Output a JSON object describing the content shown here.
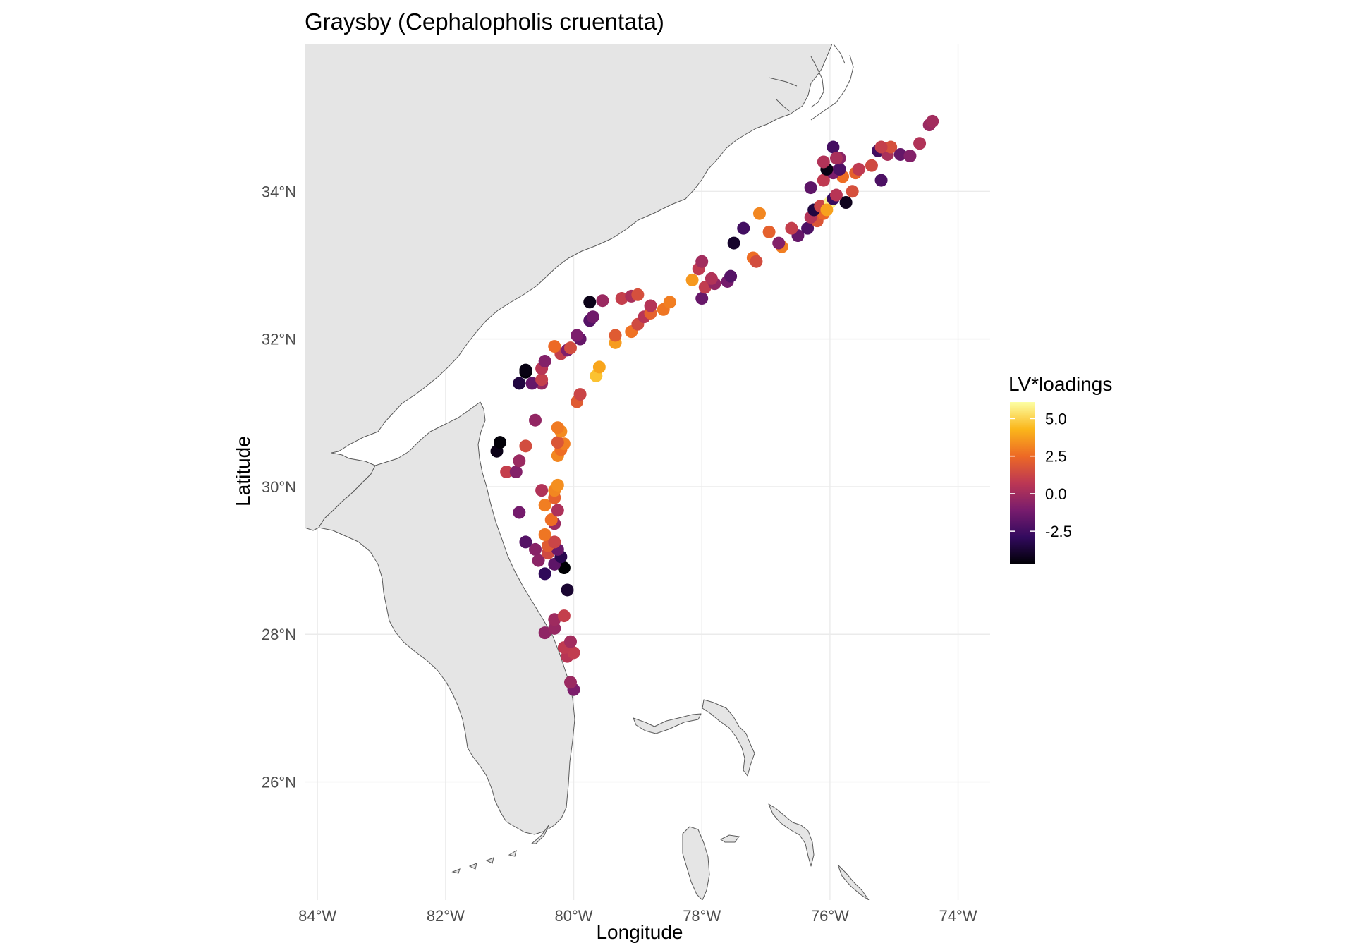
{
  "chart_data": {
    "type": "scatter",
    "title": "Graysby (Cephalopholis cruentata)",
    "xlabel": "Longitude",
    "ylabel": "Latitude",
    "x_ticks": [
      {
        "value": -84,
        "label": "84°W"
      },
      {
        "value": -82,
        "label": "82°W"
      },
      {
        "value": -80,
        "label": "80°W"
      },
      {
        "value": -78,
        "label": "78°W"
      },
      {
        "value": -76,
        "label": "76°W"
      },
      {
        "value": -74,
        "label": "74°W"
      }
    ],
    "y_ticks": [
      {
        "value": 26,
        "label": "26°N"
      },
      {
        "value": 28,
        "label": "28°N"
      },
      {
        "value": 30,
        "label": "30°N"
      },
      {
        "value": 32,
        "label": "32°N"
      },
      {
        "value": 34,
        "label": "34°N"
      }
    ],
    "xlim": [
      -84.2,
      -73.5
    ],
    "ylim": [
      24.4,
      36.0
    ],
    "grid": true,
    "basemap": "land polygons, light grey fill",
    "legend": {
      "title": "LV*loadings",
      "position": "right",
      "range": [
        -4.7,
        6.1
      ],
      "ticks": [
        {
          "value": 5.0,
          "label": "5.0"
        },
        {
          "value": 2.5,
          "label": "2.5"
        },
        {
          "value": 0.0,
          "label": "0.0"
        },
        {
          "value": -2.5,
          "label": "-2.5"
        }
      ],
      "palette": "inferno",
      "colors": [
        "#000004",
        "#320a5e",
        "#781c6d",
        "#bc3754",
        "#ed6925",
        "#fbb61a",
        "#fcffa4"
      ]
    },
    "colors": {
      "land": "#e5e5e5",
      "coastline": "#595959",
      "grid": "#ebebeb"
    },
    "points": [
      {
        "lon": -80.0,
        "lat": 27.25,
        "v": -1.0
      },
      {
        "lon": -80.05,
        "lat": 27.35,
        "v": -0.2
      },
      {
        "lon": -80.1,
        "lat": 27.7,
        "v": 0.6
      },
      {
        "lon": -80.0,
        "lat": 27.75,
        "v": 0.9
      },
      {
        "lon": -80.15,
        "lat": 27.82,
        "v": 0.8
      },
      {
        "lon": -80.05,
        "lat": 27.9,
        "v": 0.0
      },
      {
        "lon": -80.45,
        "lat": 28.02,
        "v": -0.5
      },
      {
        "lon": -80.3,
        "lat": 28.08,
        "v": -0.3
      },
      {
        "lon": -80.3,
        "lat": 28.2,
        "v": -0.1
      },
      {
        "lon": -80.15,
        "lat": 28.25,
        "v": 1.0
      },
      {
        "lon": -80.1,
        "lat": 28.6,
        "v": -3.8
      },
      {
        "lon": -80.45,
        "lat": 28.82,
        "v": -3.0
      },
      {
        "lon": -80.15,
        "lat": 28.9,
        "v": -4.7
      },
      {
        "lon": -80.3,
        "lat": 28.95,
        "v": -1.8
      },
      {
        "lon": -80.55,
        "lat": 29.0,
        "v": -0.6
      },
      {
        "lon": -80.2,
        "lat": 29.05,
        "v": -3.2
      },
      {
        "lon": -80.4,
        "lat": 29.1,
        "v": 1.4
      },
      {
        "lon": -80.25,
        "lat": 29.15,
        "v": -1.5
      },
      {
        "lon": -80.6,
        "lat": 29.15,
        "v": -0.7
      },
      {
        "lon": -80.4,
        "lat": 29.2,
        "v": 2.0
      },
      {
        "lon": -80.3,
        "lat": 29.25,
        "v": 1.2
      },
      {
        "lon": -80.75,
        "lat": 29.25,
        "v": -2.0
      },
      {
        "lon": -80.45,
        "lat": 29.35,
        "v": 2.8
      },
      {
        "lon": -80.3,
        "lat": 29.5,
        "v": -0.2
      },
      {
        "lon": -80.35,
        "lat": 29.55,
        "v": 2.6
      },
      {
        "lon": -80.85,
        "lat": 29.65,
        "v": -1.2
      },
      {
        "lon": -80.25,
        "lat": 29.68,
        "v": 0.3
      },
      {
        "lon": -80.45,
        "lat": 29.75,
        "v": 3.0
      },
      {
        "lon": -80.3,
        "lat": 29.85,
        "v": 2.2
      },
      {
        "lon": -80.3,
        "lat": 29.95,
        "v": 3.2
      },
      {
        "lon": -80.5,
        "lat": 29.95,
        "v": 0.4
      },
      {
        "lon": -80.25,
        "lat": 30.02,
        "v": 3.4
      },
      {
        "lon": -81.05,
        "lat": 30.2,
        "v": 1.0
      },
      {
        "lon": -80.9,
        "lat": 30.2,
        "v": -0.8
      },
      {
        "lon": -80.85,
        "lat": 30.35,
        "v": -0.2
      },
      {
        "lon": -80.25,
        "lat": 30.42,
        "v": 3.2
      },
      {
        "lon": -80.2,
        "lat": 30.5,
        "v": 2.6
      },
      {
        "lon": -81.2,
        "lat": 30.48,
        "v": -4.3
      },
      {
        "lon": -80.75,
        "lat": 30.55,
        "v": 1.5
      },
      {
        "lon": -80.15,
        "lat": 30.58,
        "v": 3.0
      },
      {
        "lon": -81.15,
        "lat": 30.6,
        "v": -4.6
      },
      {
        "lon": -80.25,
        "lat": 30.6,
        "v": 1.8
      },
      {
        "lon": -80.2,
        "lat": 30.75,
        "v": 3.3
      },
      {
        "lon": -80.25,
        "lat": 30.8,
        "v": 2.9
      },
      {
        "lon": -80.6,
        "lat": 30.9,
        "v": -0.4
      },
      {
        "lon": -79.95,
        "lat": 31.15,
        "v": 2.0
      },
      {
        "lon": -79.9,
        "lat": 31.25,
        "v": 1.2
      },
      {
        "lon": -80.5,
        "lat": 31.4,
        "v": -0.3
      },
      {
        "lon": -80.85,
        "lat": 31.4,
        "v": -3.5
      },
      {
        "lon": -80.65,
        "lat": 31.4,
        "v": -1.6
      },
      {
        "lon": -80.5,
        "lat": 31.45,
        "v": 1.0
      },
      {
        "lon": -79.65,
        "lat": 31.5,
        "v": 4.6
      },
      {
        "lon": -80.75,
        "lat": 31.55,
        "v": -4.6
      },
      {
        "lon": -80.75,
        "lat": 31.58,
        "v": -4.4
      },
      {
        "lon": -80.5,
        "lat": 31.6,
        "v": 0.6
      },
      {
        "lon": -79.6,
        "lat": 31.62,
        "v": 3.9
      },
      {
        "lon": -80.45,
        "lat": 31.7,
        "v": -0.8
      },
      {
        "lon": -80.2,
        "lat": 31.8,
        "v": 1.0
      },
      {
        "lon": -80.1,
        "lat": 31.85,
        "v": -0.9
      },
      {
        "lon": -80.05,
        "lat": 31.88,
        "v": 1.5
      },
      {
        "lon": -80.3,
        "lat": 31.9,
        "v": 2.5
      },
      {
        "lon": -79.9,
        "lat": 32.0,
        "v": -1.6
      },
      {
        "lon": -79.95,
        "lat": 32.05,
        "v": -1.0
      },
      {
        "lon": -79.35,
        "lat": 31.95,
        "v": 3.7
      },
      {
        "lon": -79.35,
        "lat": 32.05,
        "v": 2.0
      },
      {
        "lon": -79.1,
        "lat": 32.1,
        "v": 2.7
      },
      {
        "lon": -79.0,
        "lat": 32.2,
        "v": 1.4
      },
      {
        "lon": -79.75,
        "lat": 32.25,
        "v": -2.0
      },
      {
        "lon": -79.7,
        "lat": 32.3,
        "v": -1.3
      },
      {
        "lon": -78.9,
        "lat": 32.3,
        "v": 0.6
      },
      {
        "lon": -78.8,
        "lat": 32.35,
        "v": 2.2
      },
      {
        "lon": -78.6,
        "lat": 32.4,
        "v": 2.8
      },
      {
        "lon": -78.8,
        "lat": 32.45,
        "v": 0.5
      },
      {
        "lon": -78.5,
        "lat": 32.5,
        "v": 3.0
      },
      {
        "lon": -79.75,
        "lat": 32.5,
        "v": -4.3
      },
      {
        "lon": -79.55,
        "lat": 32.52,
        "v": -0.2
      },
      {
        "lon": -79.25,
        "lat": 32.55,
        "v": 1.0
      },
      {
        "lon": -79.1,
        "lat": 32.58,
        "v": 0.2
      },
      {
        "lon": -78.0,
        "lat": 32.55,
        "v": -1.5
      },
      {
        "lon": -79.0,
        "lat": 32.6,
        "v": 1.6
      },
      {
        "lon": -77.95,
        "lat": 32.7,
        "v": 0.9
      },
      {
        "lon": -77.8,
        "lat": 32.75,
        "v": -0.4
      },
      {
        "lon": -77.6,
        "lat": 32.78,
        "v": -1.2
      },
      {
        "lon": -78.15,
        "lat": 32.8,
        "v": 3.6
      },
      {
        "lon": -77.85,
        "lat": 32.82,
        "v": 0.4
      },
      {
        "lon": -77.55,
        "lat": 32.85,
        "v": -2.0
      },
      {
        "lon": -78.05,
        "lat": 32.95,
        "v": 0.8
      },
      {
        "lon": -77.2,
        "lat": 33.1,
        "v": 2.6
      },
      {
        "lon": -77.15,
        "lat": 33.05,
        "v": 1.5
      },
      {
        "lon": -78.0,
        "lat": 33.05,
        "v": 0.0
      },
      {
        "lon": -76.75,
        "lat": 33.25,
        "v": 3.0
      },
      {
        "lon": -76.8,
        "lat": 33.3,
        "v": -0.8
      },
      {
        "lon": -77.5,
        "lat": 33.3,
        "v": -3.9
      },
      {
        "lon": -76.5,
        "lat": 33.4,
        "v": -1.6
      },
      {
        "lon": -76.35,
        "lat": 33.5,
        "v": -2.2
      },
      {
        "lon": -76.95,
        "lat": 33.45,
        "v": 2.2
      },
      {
        "lon": -76.6,
        "lat": 33.5,
        "v": 1.0
      },
      {
        "lon": -77.35,
        "lat": 33.5,
        "v": -2.5
      },
      {
        "lon": -76.2,
        "lat": 33.6,
        "v": 1.8
      },
      {
        "lon": -76.3,
        "lat": 33.65,
        "v": 0.5
      },
      {
        "lon": -77.1,
        "lat": 33.7,
        "v": 3.2
      },
      {
        "lon": -76.1,
        "lat": 33.7,
        "v": 2.4
      },
      {
        "lon": -76.25,
        "lat": 33.75,
        "v": -3.5
      },
      {
        "lon": -76.15,
        "lat": 33.8,
        "v": 1.2
      },
      {
        "lon": -76.0,
        "lat": 33.85,
        "v": 5.8
      },
      {
        "lon": -76.05,
        "lat": 33.75,
        "v": 3.8
      },
      {
        "lon": -75.95,
        "lat": 33.9,
        "v": -2.8
      },
      {
        "lon": -75.75,
        "lat": 33.85,
        "v": -4.2
      },
      {
        "lon": -75.9,
        "lat": 33.95,
        "v": 0.6
      },
      {
        "lon": -76.3,
        "lat": 34.05,
        "v": -1.8
      },
      {
        "lon": -75.65,
        "lat": 34.0,
        "v": 1.6
      },
      {
        "lon": -76.1,
        "lat": 34.15,
        "v": 0.8
      },
      {
        "lon": -75.8,
        "lat": 34.2,
        "v": 2.6
      },
      {
        "lon": -75.95,
        "lat": 34.25,
        "v": -1.0
      },
      {
        "lon": -76.05,
        "lat": 34.3,
        "v": -4.4
      },
      {
        "lon": -75.85,
        "lat": 34.3,
        "v": -2.2
      },
      {
        "lon": -75.6,
        "lat": 34.25,
        "v": 2.2
      },
      {
        "lon": -76.1,
        "lat": 34.4,
        "v": 0.4
      },
      {
        "lon": -75.85,
        "lat": 34.45,
        "v": -0.6
      },
      {
        "lon": -75.55,
        "lat": 34.3,
        "v": 0.8
      },
      {
        "lon": -75.35,
        "lat": 34.35,
        "v": 1.4
      },
      {
        "lon": -75.2,
        "lat": 34.15,
        "v": -2.2
      },
      {
        "lon": -75.25,
        "lat": 34.55,
        "v": -2.5
      },
      {
        "lon": -75.1,
        "lat": 34.5,
        "v": 0.2
      },
      {
        "lon": -75.05,
        "lat": 34.6,
        "v": 1.6
      },
      {
        "lon": -74.9,
        "lat": 34.5,
        "v": -1.6
      },
      {
        "lon": -74.75,
        "lat": 34.48,
        "v": -0.8
      },
      {
        "lon": -74.6,
        "lat": 34.65,
        "v": 0.4
      },
      {
        "lon": -74.45,
        "lat": 34.9,
        "v": -0.2
      },
      {
        "lon": -74.4,
        "lat": 34.95,
        "v": 0.0
      },
      {
        "lon": -75.2,
        "lat": 34.6,
        "v": 1.0
      },
      {
        "lon": -75.95,
        "lat": 34.6,
        "v": -2.4
      },
      {
        "lon": -75.9,
        "lat": 34.45,
        "v": 0.2
      }
    ]
  }
}
